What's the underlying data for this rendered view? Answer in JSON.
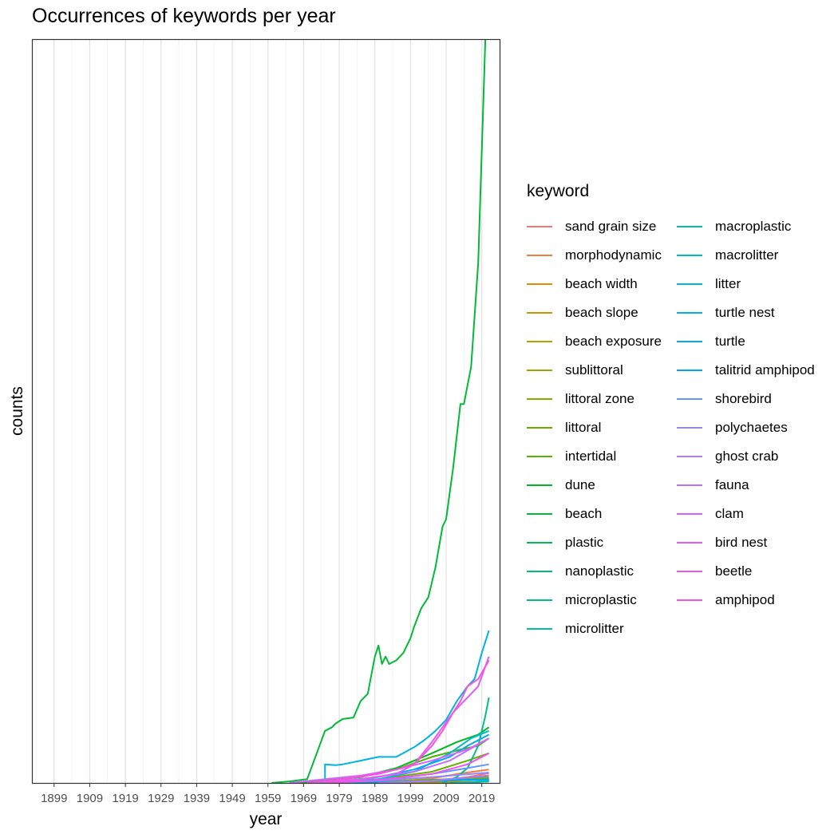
{
  "chart_data": {
    "type": "line",
    "title": "Occurrences of keywords per year",
    "xlabel": "year",
    "ylabel": "counts",
    "xlim": [
      1893,
      2024
    ],
    "ylim": [
      0,
      1000
    ],
    "x_ticks": [
      "1899",
      "1909",
      "1919",
      "1929",
      "1939",
      "1949",
      "1959",
      "1969",
      "1979",
      "1989",
      "1999",
      "2009",
      "2019"
    ],
    "y_ticks_shown": false,
    "grid": "vertical",
    "legend": {
      "title": "keyword",
      "placement": "right"
    },
    "series": [
      {
        "name": "sand grain size",
        "color": "#F8766D",
        "points": [
          [
            1975,
            0
          ],
          [
            1990,
            1
          ],
          [
            2005,
            3
          ],
          [
            2015,
            8
          ],
          [
            2021,
            13
          ]
        ]
      },
      {
        "name": "morphodynamic",
        "color": "#EE8042",
        "points": [
          [
            1980,
            0
          ],
          [
            1995,
            2
          ],
          [
            2005,
            6
          ],
          [
            2012,
            12
          ],
          [
            2021,
            18
          ]
        ]
      },
      {
        "name": "beach width",
        "color": "#DE8C00",
        "points": [
          [
            1975,
            0
          ],
          [
            1995,
            1
          ],
          [
            2010,
            3
          ],
          [
            2021,
            6
          ]
        ]
      },
      {
        "name": "beach slope",
        "color": "#CD9600",
        "points": [
          [
            1975,
            0
          ],
          [
            1995,
            1
          ],
          [
            2010,
            3
          ],
          [
            2021,
            5
          ]
        ]
      },
      {
        "name": "beach exposure",
        "color": "#B79F00",
        "points": [
          [
            1990,
            0
          ],
          [
            2010,
            1
          ],
          [
            2021,
            2
          ]
        ]
      },
      {
        "name": "sublittoral",
        "color": "#9CA700",
        "points": [
          [
            1970,
            0
          ],
          [
            1990,
            1
          ],
          [
            2010,
            3
          ],
          [
            2021,
            5
          ]
        ]
      },
      {
        "name": "littoral zone",
        "color": "#7CAE00",
        "points": [
          [
            1970,
            0
          ],
          [
            1990,
            2
          ],
          [
            2010,
            5
          ],
          [
            2021,
            8
          ]
        ]
      },
      {
        "name": "littoral",
        "color": "#66B100",
        "points": [
          [
            1965,
            0
          ],
          [
            1975,
            2
          ],
          [
            1990,
            5
          ],
          [
            2005,
            15
          ],
          [
            2015,
            30
          ],
          [
            2021,
            40
          ]
        ]
      },
      {
        "name": "intertidal",
        "color": "#4DB400",
        "points": [
          [
            1965,
            0
          ],
          [
            1975,
            3
          ],
          [
            1985,
            8
          ],
          [
            1995,
            18
          ],
          [
            2005,
            35
          ],
          [
            2013,
            45
          ],
          [
            2018,
            50
          ],
          [
            2021,
            60
          ]
        ]
      },
      {
        "name": "dune",
        "color": "#00B81F",
        "points": [
          [
            1965,
            0
          ],
          [
            1975,
            3
          ],
          [
            1985,
            8
          ],
          [
            1995,
            20
          ],
          [
            2005,
            40
          ],
          [
            2012,
            55
          ],
          [
            2015,
            60
          ],
          [
            2018,
            65
          ],
          [
            2021,
            75
          ]
        ]
      },
      {
        "name": "beach",
        "color": "#00BA38",
        "points": [
          [
            1960,
            0
          ],
          [
            1965,
            2
          ],
          [
            1970,
            5
          ],
          [
            1975,
            70
          ],
          [
            1977,
            75
          ],
          [
            1978,
            80
          ],
          [
            1980,
            86
          ],
          [
            1983,
            88
          ],
          [
            1985,
            110
          ],
          [
            1987,
            120
          ],
          [
            1989,
            170
          ],
          [
            1990,
            185
          ],
          [
            1991,
            160
          ],
          [
            1992,
            170
          ],
          [
            1993,
            160
          ],
          [
            1995,
            165
          ],
          [
            1997,
            175
          ],
          [
            1999,
            195
          ],
          [
            2000,
            210
          ],
          [
            2002,
            235
          ],
          [
            2004,
            250
          ],
          [
            2006,
            290
          ],
          [
            2008,
            345
          ],
          [
            2009,
            355
          ],
          [
            2011,
            425
          ],
          [
            2013,
            510
          ],
          [
            2014,
            510
          ],
          [
            2016,
            560
          ],
          [
            2018,
            700
          ],
          [
            2020,
            1000
          ]
        ]
      },
      {
        "name": "plastic",
        "color": "#00BC59",
        "points": [
          [
            1985,
            0
          ],
          [
            2000,
            2
          ],
          [
            2010,
            5
          ],
          [
            2021,
            10
          ]
        ]
      },
      {
        "name": "nanoplastic",
        "color": "#00BE72",
        "points": [
          [
            2010,
            0
          ],
          [
            2015,
            1
          ],
          [
            2021,
            2
          ]
        ]
      },
      {
        "name": "microplastic",
        "color": "#00BF89",
        "points": [
          [
            2008,
            0
          ],
          [
            2012,
            8
          ],
          [
            2015,
            20
          ],
          [
            2018,
            50
          ],
          [
            2020,
            90
          ],
          [
            2021,
            115
          ]
        ]
      },
      {
        "name": "microlitter",
        "color": "#00C09E",
        "points": [
          [
            2012,
            0
          ],
          [
            2018,
            1
          ],
          [
            2021,
            3
          ]
        ]
      },
      {
        "name": "macroplastic",
        "color": "#00C0B2",
        "points": [
          [
            2012,
            0
          ],
          [
            2018,
            2
          ],
          [
            2021,
            4
          ]
        ]
      },
      {
        "name": "macrolitter",
        "color": "#00BDC4",
        "points": [
          [
            2012,
            0
          ],
          [
            2018,
            2
          ],
          [
            2021,
            4
          ]
        ]
      },
      {
        "name": "litter",
        "color": "#00B9D6",
        "points": [
          [
            1970,
            0
          ],
          [
            1980,
            2
          ],
          [
            1990,
            5
          ],
          [
            2000,
            15
          ],
          [
            2010,
            40
          ],
          [
            2016,
            60
          ],
          [
            2021,
            70
          ]
        ]
      },
      {
        "name": "turtle nest",
        "color": "#00B3E5",
        "points": [
          [
            1975,
            0
          ],
          [
            1975,
            25
          ],
          [
            1978,
            24
          ],
          [
            1980,
            25
          ],
          [
            1985,
            30
          ],
          [
            1990,
            35
          ],
          [
            1995,
            35
          ],
          [
            2000,
            48
          ],
          [
            2003,
            58
          ],
          [
            2006,
            70
          ],
          [
            2009,
            85
          ],
          [
            2012,
            110
          ],
          [
            2015,
            130
          ],
          [
            2017,
            140
          ],
          [
            2019,
            175
          ],
          [
            2021,
            205
          ]
        ]
      },
      {
        "name": "turtle",
        "color": "#00ABF0",
        "points": [
          [
            1970,
            0
          ],
          [
            1980,
            3
          ],
          [
            1990,
            8
          ],
          [
            2000,
            18
          ],
          [
            2010,
            35
          ],
          [
            2015,
            50
          ],
          [
            2021,
            65
          ]
        ]
      },
      {
        "name": "talitrid amphipod",
        "color": "#00A1FA",
        "points": [
          [
            1980,
            0
          ],
          [
            2000,
            2
          ],
          [
            2021,
            5
          ]
        ]
      },
      {
        "name": "shorebird",
        "color": "#6495FF",
        "points": [
          [
            1975,
            0
          ],
          [
            1985,
            3
          ],
          [
            1995,
            6
          ],
          [
            2005,
            12
          ],
          [
            2015,
            20
          ],
          [
            2021,
            25
          ]
        ]
      },
      {
        "name": "polychaetes",
        "color": "#9187FF",
        "points": [
          [
            1975,
            0
          ],
          [
            1990,
            3
          ],
          [
            2005,
            8
          ],
          [
            2021,
            14
          ]
        ]
      },
      {
        "name": "ghost crab",
        "color": "#AE7AFF",
        "points": [
          [
            1990,
            0
          ],
          [
            2005,
            3
          ],
          [
            2021,
            10
          ]
        ]
      },
      {
        "name": "fauna",
        "color": "#C46EFF",
        "points": [
          [
            1970,
            0
          ],
          [
            1985,
            5
          ],
          [
            2000,
            15
          ],
          [
            2010,
            30
          ],
          [
            2021,
            60
          ]
        ]
      },
      {
        "name": "clam",
        "color": "#D563FF",
        "points": [
          [
            1965,
            0
          ],
          [
            1975,
            5
          ],
          [
            1985,
            10
          ],
          [
            1995,
            18
          ],
          [
            2005,
            30
          ],
          [
            2015,
            45
          ],
          [
            2021,
            60
          ]
        ]
      },
      {
        "name": "bird nest",
        "color": "#E45AF8",
        "points": [
          [
            1975,
            0
          ],
          [
            1985,
            5
          ],
          [
            1995,
            12
          ],
          [
            2000,
            25
          ],
          [
            2005,
            55
          ],
          [
            2008,
            75
          ],
          [
            2011,
            95
          ],
          [
            2013,
            105
          ],
          [
            2015,
            115
          ],
          [
            2018,
            130
          ],
          [
            2021,
            170
          ]
        ]
      },
      {
        "name": "beetle",
        "color": "#F054EA",
        "points": [
          [
            1975,
            0
          ],
          [
            1990,
            4
          ],
          [
            2005,
            12
          ],
          [
            2015,
            25
          ],
          [
            2021,
            40
          ]
        ]
      },
      {
        "name": "amphipod",
        "color": "#FA52D9",
        "points": [
          [
            1970,
            0
          ],
          [
            1980,
            5
          ],
          [
            1990,
            12
          ],
          [
            1995,
            18
          ],
          [
            2000,
            25
          ],
          [
            2005,
            50
          ],
          [
            2008,
            70
          ],
          [
            2011,
            95
          ],
          [
            2013,
            110
          ],
          [
            2015,
            130
          ],
          [
            2018,
            140
          ],
          [
            2021,
            165
          ]
        ]
      }
    ]
  }
}
